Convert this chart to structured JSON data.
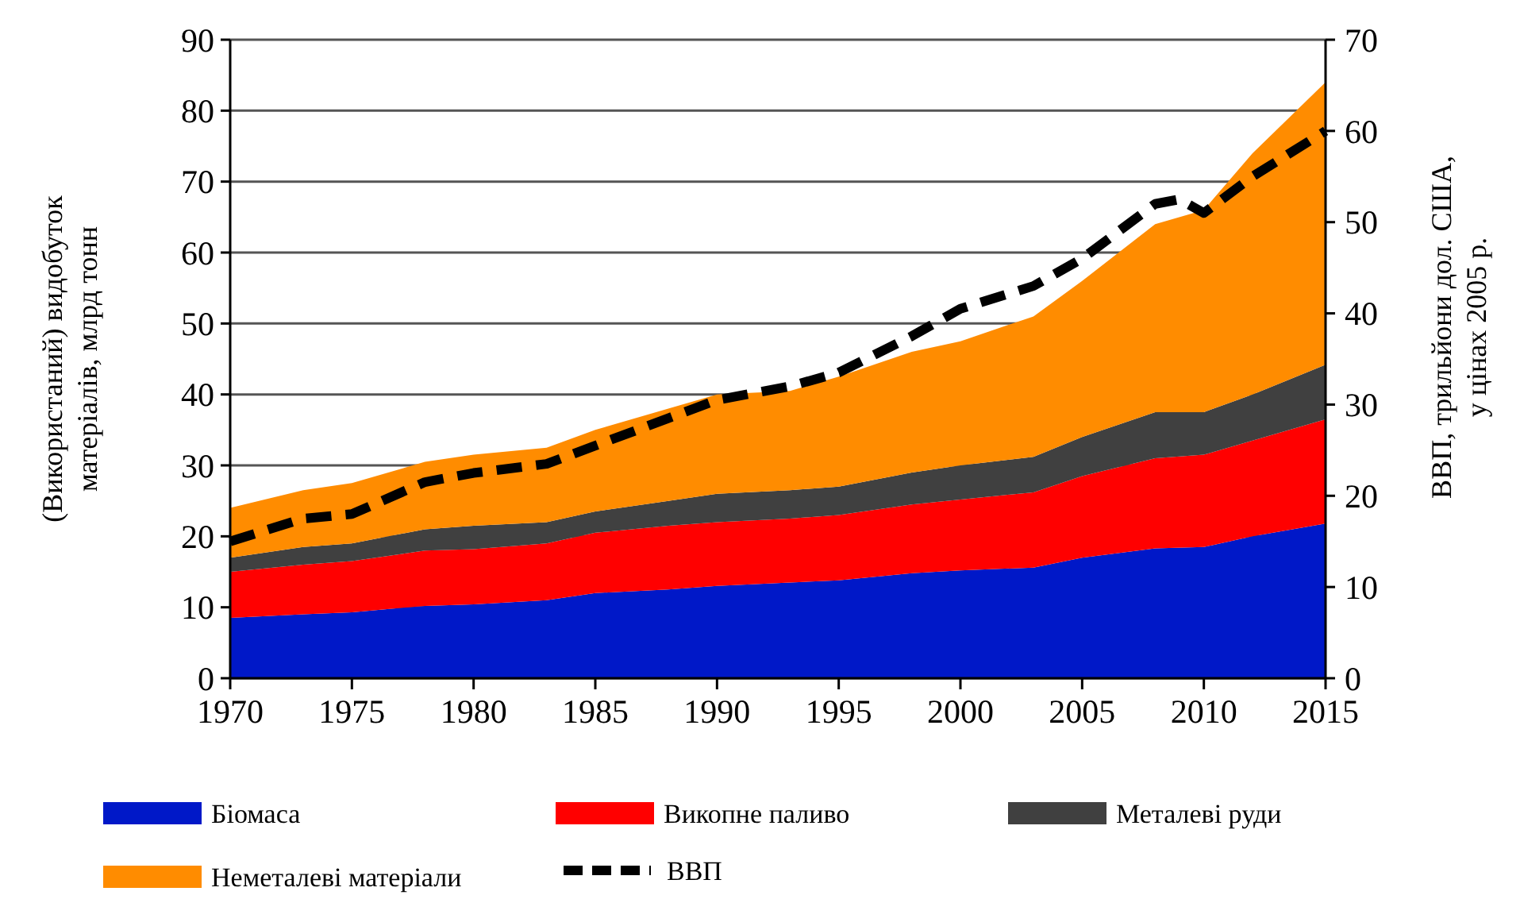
{
  "chart_data": {
    "type": "area",
    "stacked": true,
    "x": [
      1970,
      1973,
      1975,
      1978,
      1980,
      1983,
      1985,
      1988,
      1990,
      1993,
      1995,
      1998,
      2000,
      2003,
      2005,
      2008,
      2010,
      2012,
      2015
    ],
    "ylabel": "(Використаний) видобуток\nматеріалів, млрд тонн",
    "y2label": "ВВП, трильйони дол. США,\nу цінах 2005 р.",
    "xlim": [
      1970,
      2015
    ],
    "xticks": [
      1970,
      1975,
      1980,
      1985,
      1990,
      1995,
      2000,
      2005,
      2010,
      2015
    ],
    "ylim": [
      0,
      90
    ],
    "yticks": [
      0,
      10,
      20,
      30,
      40,
      50,
      60,
      70,
      80,
      90
    ],
    "y2lim": [
      0,
      70
    ],
    "y2ticks": [
      0,
      10,
      20,
      30,
      40,
      50,
      60,
      70
    ],
    "grid": "y",
    "legend": "bottom",
    "series": [
      {
        "name": "Біомаса",
        "color": "#0018c8",
        "values": [
          8.5,
          9,
          9.3,
          10.2,
          10.4,
          11,
          12,
          12.5,
          13,
          13.5,
          13.8,
          14.8,
          15.2,
          15.6,
          17,
          18.3,
          18.5,
          20,
          21.8
        ]
      },
      {
        "name": "Викопне паливо",
        "color": "#ff0000",
        "values": [
          6.5,
          7,
          7.2,
          7.8,
          7.8,
          8,
          8.5,
          9,
          9,
          9,
          9.2,
          9.7,
          10,
          10.6,
          11.5,
          12.7,
          13,
          13.5,
          14.7
        ]
      },
      {
        "name": "Металеві руди",
        "color": "#404040",
        "values": [
          2,
          2.5,
          2.5,
          3,
          3.3,
          3,
          3,
          3.5,
          4,
          4,
          4,
          4.5,
          4.8,
          5,
          5.5,
          6.5,
          6,
          6.5,
          7.7
        ]
      },
      {
        "name": "Неметалеві матеріали",
        "color": "#ff8c00",
        "values": [
          7,
          8,
          8.5,
          9.5,
          10,
          10.5,
          11.5,
          13,
          14,
          14,
          15.5,
          17,
          17.5,
          19.8,
          22,
          26.5,
          28.5,
          34,
          39.8
        ]
      },
      {
        "name": "ВВП",
        "type": "line",
        "axis": "y2",
        "color": "#000000",
        "line_style": "dashed",
        "x": [
          1970,
          1973,
          1975,
          1978,
          1980,
          1983,
          1985,
          1988,
          1990,
          1993,
          1995,
          1998,
          2000,
          2003,
          2005,
          2008,
          2009,
          2010,
          2012,
          2015
        ],
        "values": [
          15,
          17.5,
          18,
          21.5,
          22.5,
          23.5,
          25.5,
          28.5,
          30.5,
          32,
          33.5,
          37.5,
          40.5,
          43,
          46,
          52,
          52.5,
          51,
          55,
          60
        ]
      }
    ]
  }
}
